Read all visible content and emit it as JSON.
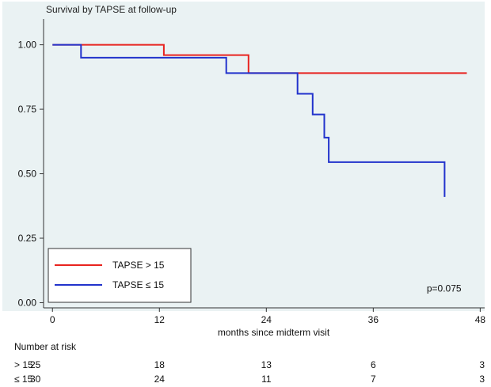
{
  "chart_data": {
    "type": "line",
    "title": "Survival by TAPSE at follow-up",
    "xlabel": "months since midterm visit",
    "ylabel": "",
    "xlim": [
      -1,
      48.5
    ],
    "ylim": [
      -0.02,
      1.1
    ],
    "x_ticks": [
      {
        "value": 0,
        "label": "0"
      },
      {
        "value": 12,
        "label": "12"
      },
      {
        "value": 24,
        "label": "24"
      },
      {
        "value": 36,
        "label": "36"
      },
      {
        "value": 48,
        "label": "48"
      }
    ],
    "y_ticks": [
      {
        "value": 0,
        "label": "0.00"
      },
      {
        "value": 0.25,
        "label": "0.25"
      },
      {
        "value": 0.5,
        "label": "0.50"
      },
      {
        "value": 0.75,
        "label": "0.75"
      },
      {
        "value": 1,
        "label": "1.00"
      }
    ],
    "background_color": "#eaf2f3",
    "series": [
      {
        "name": "TAPSE > 15",
        "color": "#e8231f",
        "step": true,
        "points": [
          [
            0,
            1.0
          ],
          [
            12.5,
            1.0
          ],
          [
            12.5,
            0.96
          ],
          [
            22,
            0.96
          ],
          [
            22,
            0.89
          ],
          [
            46.5,
            0.89
          ]
        ]
      },
      {
        "name": "TAPSE ≤ 15",
        "color": "#2233cc",
        "step": true,
        "points": [
          [
            0,
            1.0
          ],
          [
            3.2,
            1.0
          ],
          [
            3.2,
            0.95
          ],
          [
            19.5,
            0.95
          ],
          [
            19.5,
            0.89
          ],
          [
            27.5,
            0.89
          ],
          [
            27.5,
            0.81
          ],
          [
            29.2,
            0.81
          ],
          [
            29.2,
            0.73
          ],
          [
            30.5,
            0.73
          ],
          [
            30.5,
            0.64
          ],
          [
            31,
            0.64
          ],
          [
            31,
            0.545
          ],
          [
            44,
            0.545
          ],
          [
            44,
            0.41
          ]
        ]
      }
    ],
    "legend": {
      "position": "bottom-left",
      "items": [
        {
          "label": "TAPSE  > 15",
          "color": "#e8231f"
        },
        {
          "label": "TAPSE  ≤ 15",
          "color": "#2233cc"
        }
      ]
    },
    "annotations": [
      {
        "text": "p=0.075",
        "x": 42,
        "y": 0.055
      }
    ],
    "risk_table": {
      "title": "Number at risk",
      "rows": [
        {
          "label": "> 15",
          "values": [
            25,
            18,
            13,
            6,
            3
          ]
        },
        {
          "label": "≤ 15",
          "values": [
            30,
            24,
            11,
            7,
            3
          ]
        }
      ]
    }
  }
}
